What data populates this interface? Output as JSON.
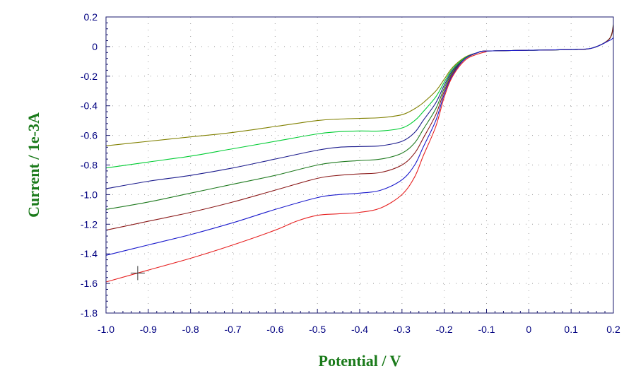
{
  "chart_data": {
    "type": "line",
    "title": "",
    "xlabel": "Potential / V",
    "ylabel": "Current / 1e-3A",
    "xlim": [
      -1.0,
      0.2
    ],
    "ylim": [
      -1.8,
      0.2
    ],
    "x_ticks": [
      "-1.0",
      "-0.9",
      "-0.8",
      "-0.7",
      "-0.6",
      "-0.5",
      "-0.4",
      "-0.3",
      "-0.2",
      "-0.1",
      "0",
      "0.1",
      "0.2"
    ],
    "y_ticks": [
      "0.2",
      "0",
      "-0.2",
      "-0.4",
      "-0.6",
      "-0.8",
      "-1.0",
      "-1.2",
      "-1.4",
      "-1.6",
      "-1.8"
    ],
    "grid": "dotted",
    "legend": "none",
    "cursor_marker": {
      "x": -0.925,
      "y": -1.53
    },
    "series": [
      {
        "color": "#808000",
        "x": [
          -1.0,
          -0.9,
          -0.8,
          -0.7,
          -0.6,
          -0.5,
          -0.45,
          -0.4,
          -0.35,
          -0.3,
          -0.27,
          -0.25,
          -0.22,
          -0.2,
          -0.18,
          -0.15,
          -0.12,
          -0.1,
          0.0,
          0.1,
          0.15,
          0.19,
          0.2
        ],
        "y": [
          -0.67,
          -0.64,
          -0.61,
          -0.58,
          -0.54,
          -0.5,
          -0.49,
          -0.485,
          -0.48,
          -0.46,
          -0.42,
          -0.38,
          -0.3,
          -0.22,
          -0.14,
          -0.07,
          -0.04,
          -0.03,
          -0.025,
          -0.02,
          -0.01,
          0.05,
          0.15
        ]
      },
      {
        "color": "#00cc33",
        "x": [
          -1.0,
          -0.9,
          -0.8,
          -0.7,
          -0.6,
          -0.5,
          -0.45,
          -0.4,
          -0.35,
          -0.3,
          -0.27,
          -0.25,
          -0.22,
          -0.2,
          -0.18,
          -0.15,
          -0.12,
          -0.1,
          0.0,
          0.1,
          0.15,
          0.19,
          0.2
        ],
        "y": [
          -0.82,
          -0.78,
          -0.74,
          -0.69,
          -0.64,
          -0.59,
          -0.575,
          -0.57,
          -0.57,
          -0.55,
          -0.5,
          -0.44,
          -0.34,
          -0.24,
          -0.15,
          -0.075,
          -0.04,
          -0.03,
          -0.025,
          -0.02,
          -0.01,
          0.05,
          0.14
        ]
      },
      {
        "color": "#1a1a8c",
        "x": [
          -1.0,
          -0.9,
          -0.8,
          -0.7,
          -0.6,
          -0.5,
          -0.45,
          -0.4,
          -0.35,
          -0.3,
          -0.27,
          -0.25,
          -0.22,
          -0.2,
          -0.18,
          -0.15,
          -0.12,
          -0.1,
          0.0,
          0.1,
          0.15,
          0.19,
          0.2
        ],
        "y": [
          -0.96,
          -0.91,
          -0.87,
          -0.82,
          -0.76,
          -0.7,
          -0.68,
          -0.675,
          -0.67,
          -0.64,
          -0.58,
          -0.5,
          -0.38,
          -0.26,
          -0.16,
          -0.08,
          -0.04,
          -0.03,
          -0.025,
          -0.02,
          -0.01,
          0.05,
          0.14
        ]
      },
      {
        "color": "#1f7a1f",
        "x": [
          -1.0,
          -0.9,
          -0.8,
          -0.7,
          -0.6,
          -0.5,
          -0.45,
          -0.4,
          -0.35,
          -0.3,
          -0.27,
          -0.25,
          -0.22,
          -0.2,
          -0.18,
          -0.15,
          -0.12,
          -0.1,
          0.0,
          0.1,
          0.15,
          0.19,
          0.2
        ],
        "y": [
          -1.1,
          -1.05,
          -0.99,
          -0.93,
          -0.87,
          -0.8,
          -0.78,
          -0.77,
          -0.76,
          -0.72,
          -0.65,
          -0.56,
          -0.42,
          -0.28,
          -0.17,
          -0.08,
          -0.04,
          -0.03,
          -0.025,
          -0.02,
          -0.01,
          0.05,
          0.14
        ]
      },
      {
        "color": "#8b1a1a",
        "x": [
          -1.0,
          -0.9,
          -0.8,
          -0.7,
          -0.6,
          -0.5,
          -0.45,
          -0.4,
          -0.35,
          -0.3,
          -0.27,
          -0.25,
          -0.22,
          -0.2,
          -0.18,
          -0.15,
          -0.12,
          -0.1,
          0.0,
          0.1,
          0.15,
          0.19,
          0.2
        ],
        "y": [
          -1.24,
          -1.18,
          -1.12,
          -1.05,
          -0.97,
          -0.89,
          -0.87,
          -0.86,
          -0.85,
          -0.8,
          -0.72,
          -0.62,
          -0.46,
          -0.3,
          -0.18,
          -0.08,
          -0.04,
          -0.03,
          -0.025,
          -0.02,
          -0.01,
          0.05,
          0.14
        ]
      },
      {
        "color": "#1a1acc",
        "x": [
          -1.0,
          -0.9,
          -0.8,
          -0.7,
          -0.6,
          -0.5,
          -0.45,
          -0.4,
          -0.35,
          -0.3,
          -0.27,
          -0.25,
          -0.22,
          -0.2,
          -0.18,
          -0.15,
          -0.12,
          -0.1,
          0.0,
          0.1,
          0.15,
          0.19,
          0.2
        ],
        "y": [
          -1.41,
          -1.34,
          -1.27,
          -1.19,
          -1.1,
          -1.02,
          -1.0,
          -0.99,
          -0.97,
          -0.9,
          -0.8,
          -0.68,
          -0.5,
          -0.32,
          -0.19,
          -0.08,
          -0.04,
          -0.03,
          -0.025,
          -0.02,
          -0.01,
          0.04,
          0.06
        ]
      },
      {
        "color": "#e62020",
        "x": [
          -1.0,
          -0.9,
          -0.8,
          -0.7,
          -0.6,
          -0.55,
          -0.5,
          -0.45,
          -0.4,
          -0.35,
          -0.3,
          -0.27,
          -0.25,
          -0.22,
          -0.2,
          -0.18,
          -0.15,
          -0.12,
          -0.1
        ],
        "y": [
          -1.59,
          -1.51,
          -1.43,
          -1.34,
          -1.24,
          -1.18,
          -1.14,
          -1.13,
          -1.12,
          -1.09,
          -1.0,
          -0.88,
          -0.74,
          -0.54,
          -0.34,
          -0.2,
          -0.09,
          -0.05,
          -0.035
        ]
      }
    ]
  }
}
